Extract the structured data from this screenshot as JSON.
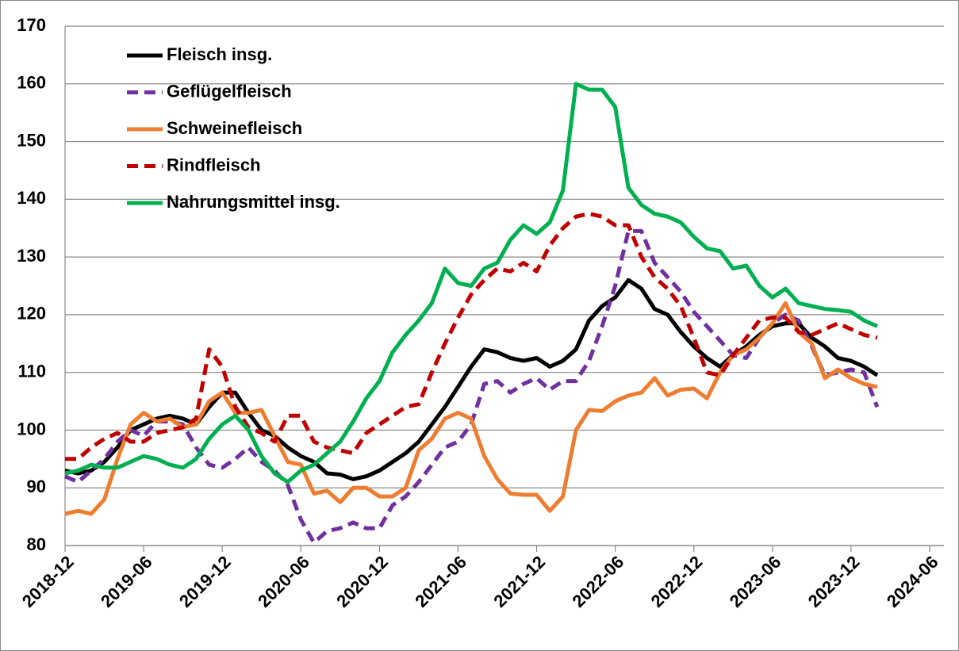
{
  "chart_data": {
    "type": "line",
    "x": [
      "2018-12",
      "2019-01",
      "2019-02",
      "2019-03",
      "2019-04",
      "2019-05",
      "2019-06",
      "2019-07",
      "2019-08",
      "2019-09",
      "2019-10",
      "2019-11",
      "2019-12",
      "2020-01",
      "2020-02",
      "2020-03",
      "2020-04",
      "2020-05",
      "2020-06",
      "2020-07",
      "2020-08",
      "2020-09",
      "2020-10",
      "2020-11",
      "2020-12",
      "2021-01",
      "2021-02",
      "2021-03",
      "2021-04",
      "2021-05",
      "2021-06",
      "2021-07",
      "2021-08",
      "2021-09",
      "2021-10",
      "2021-11",
      "2021-12",
      "2022-01",
      "2022-02",
      "2022-03",
      "2022-04",
      "2022-05",
      "2022-06",
      "2022-07",
      "2022-08",
      "2022-09",
      "2022-10",
      "2022-11",
      "2022-12",
      "2023-01",
      "2023-02",
      "2023-03",
      "2023-04",
      "2023-05",
      "2023-06",
      "2023-07",
      "2023-08",
      "2023-09",
      "2023-10",
      "2023-11",
      "2023-12",
      "2024-01",
      "2024-02"
    ],
    "series": [
      {
        "name": "Fleisch insg.",
        "color": "#000000",
        "dashed": false,
        "values": [
          93,
          92.5,
          93,
          94.5,
          97,
          100,
          101,
          102,
          102.5,
          102,
          101,
          104,
          106.5,
          106.5,
          103,
          100,
          99,
          97,
          95.5,
          94.5,
          92.5,
          92.3,
          91.5,
          92,
          93,
          94.5,
          96,
          98,
          101,
          104,
          107.5,
          111,
          114,
          113.5,
          112.5,
          112,
          112.5,
          111,
          112,
          114,
          119,
          121.5,
          123,
          126,
          124.5,
          121,
          120,
          117,
          114.5,
          112.5,
          111,
          113,
          114.5,
          116.5,
          118,
          118.5,
          118.5,
          116,
          114.5,
          112.5,
          112,
          111,
          109.5
        ]
      },
      {
        "name": "Geflügelfleisch",
        "color": "#7030a0",
        "dashed": true,
        "values": [
          92,
          91,
          93,
          95,
          98,
          100,
          99,
          101.5,
          101.5,
          101,
          97,
          94,
          93.5,
          95,
          97,
          94.5,
          93,
          90.5,
          84.5,
          80.5,
          82.5,
          83,
          84,
          83,
          83,
          87,
          88.5,
          91,
          94,
          97,
          98,
          101,
          108,
          108.5,
          106.5,
          108,
          109,
          107,
          108.5,
          108.5,
          112,
          118,
          125,
          134.5,
          134.5,
          129,
          126.5,
          124,
          120.5,
          118,
          115.5,
          113,
          112.5,
          116,
          118.5,
          120,
          119,
          114.5,
          109.5,
          110,
          110.5,
          110,
          104
        ]
      },
      {
        "name": "Schweinefleisch",
        "color": "#ed7d31",
        "dashed": false,
        "values": [
          85.5,
          86,
          85.5,
          88,
          95,
          101,
          103,
          101.5,
          102,
          100.5,
          101,
          105,
          106.5,
          103,
          103,
          103.5,
          99,
          94.5,
          94,
          89,
          89.5,
          87.5,
          90,
          90,
          88.5,
          88.5,
          90,
          96.5,
          98.5,
          102,
          103,
          102,
          95.5,
          91.5,
          89,
          88.8,
          88.8,
          86,
          88.5,
          100,
          103.5,
          103.3,
          105,
          106,
          106.5,
          109,
          106,
          107,
          107.2,
          105.5,
          110,
          113,
          114,
          116,
          118.5,
          122,
          117,
          115,
          109,
          110.5,
          109,
          108,
          107.5
        ]
      },
      {
        "name": "Rindfleisch",
        "color": "#c00000",
        "dashed": true,
        "values": [
          95,
          95,
          97,
          98.5,
          99.5,
          98,
          98,
          99.5,
          100,
          100.5,
          102,
          114,
          111,
          104,
          100.5,
          99.5,
          98,
          102.5,
          102.5,
          98,
          97,
          96.5,
          96,
          99.5,
          101,
          102.5,
          104,
          104.5,
          110,
          115,
          119.5,
          123.5,
          126,
          128,
          127.5,
          129,
          127.5,
          132,
          135,
          137,
          137.5,
          137,
          135.5,
          135.5,
          130,
          126.5,
          124.5,
          121.5,
          116,
          110,
          109.5,
          113,
          116,
          119,
          119.5,
          119.5,
          117,
          116.5,
          117.5,
          118.5,
          117.5,
          116.5,
          116
        ]
      },
      {
        "name": "Nahrungsmittel insg.",
        "color": "#00b050",
        "dashed": false,
        "values": [
          92.5,
          93,
          94,
          93.5,
          93.5,
          94.5,
          95.5,
          95,
          94,
          93.5,
          95,
          98.5,
          101,
          102.5,
          100,
          95.5,
          92.5,
          91,
          93,
          94,
          96,
          98,
          101.5,
          105.5,
          108.5,
          113.5,
          116.5,
          119,
          122,
          128,
          125.5,
          125,
          128,
          129,
          133,
          135.5,
          134,
          136,
          141.5,
          160,
          159,
          159,
          156,
          142,
          139,
          137.5,
          137,
          136,
          133.5,
          131.5,
          131,
          128,
          128.5,
          125,
          123,
          124.5,
          122,
          121.5,
          121,
          120.8,
          120.5,
          119,
          118
        ]
      }
    ],
    "xlim": [
      "2018-12",
      "2024-06"
    ],
    "xticks": [
      "2018-12",
      "2019-06",
      "2019-12",
      "2020-06",
      "2020-12",
      "2021-06",
      "2021-12",
      "2022-06",
      "2022-12",
      "2023-06",
      "2023-12",
      "2024-06"
    ],
    "ylim": [
      80,
      170
    ],
    "yticks": [
      80,
      90,
      100,
      110,
      120,
      130,
      140,
      150,
      160,
      170
    ],
    "grid": true,
    "legend": "upper left"
  }
}
